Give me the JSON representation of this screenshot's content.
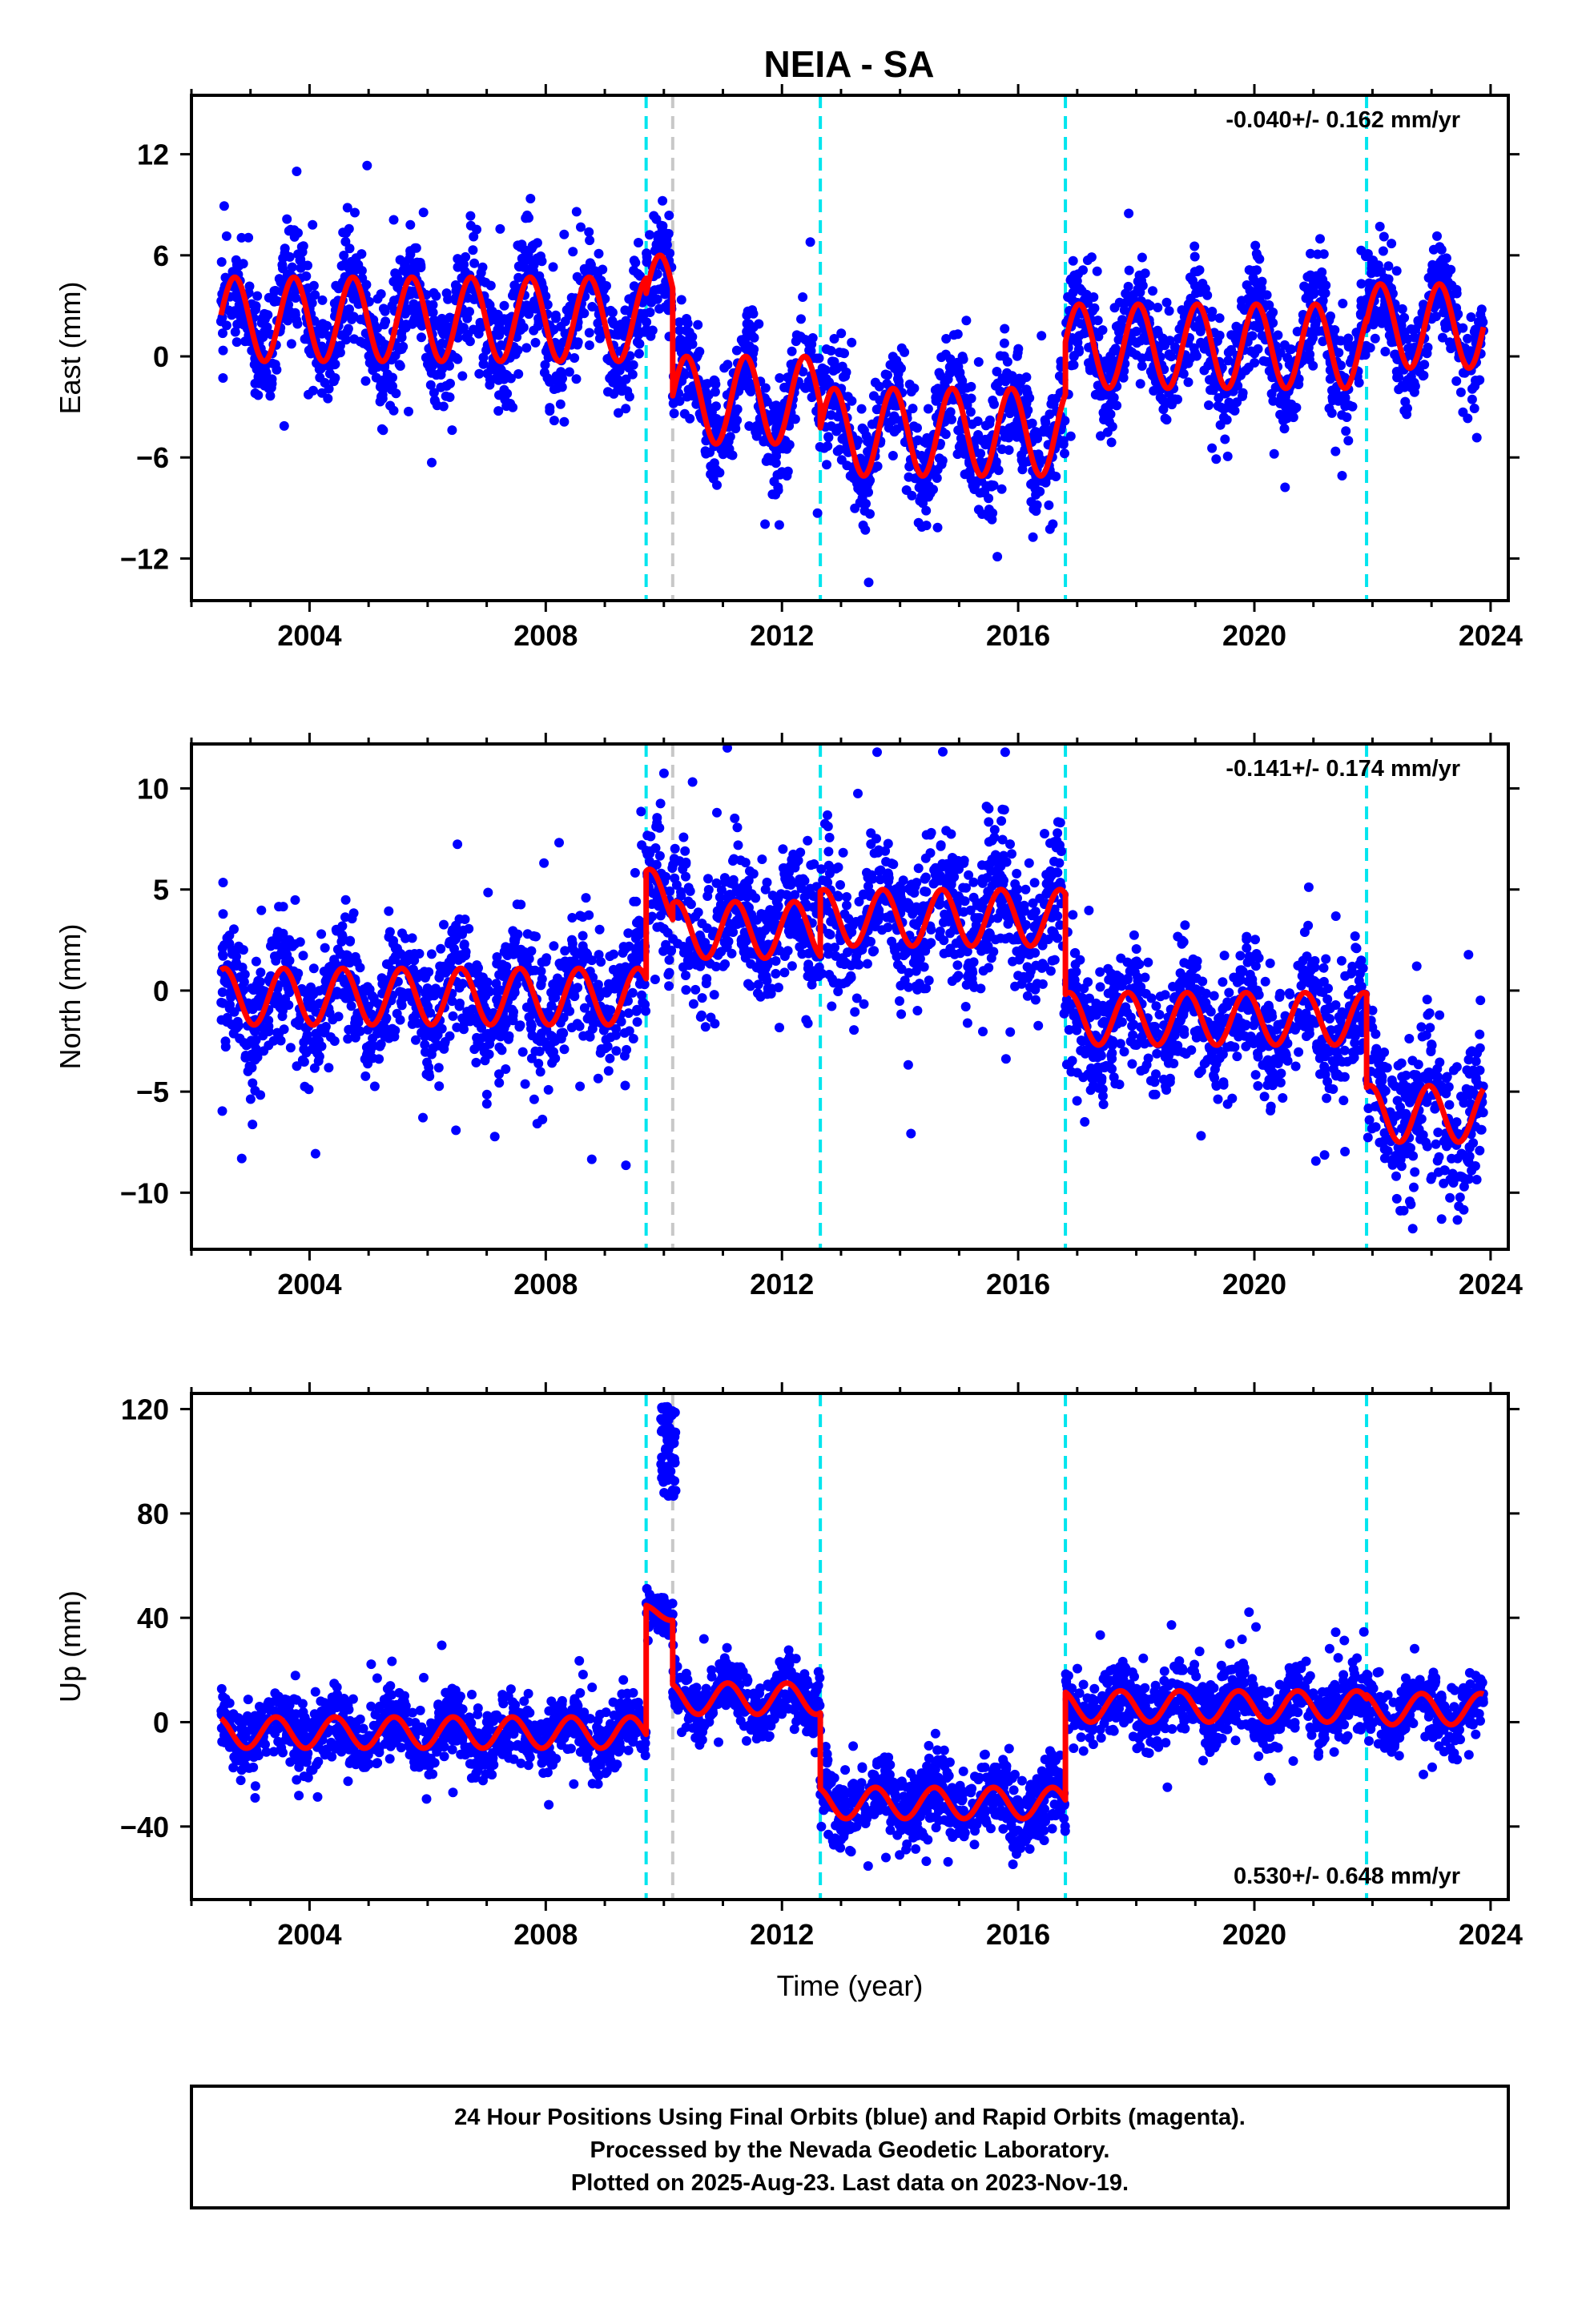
{
  "chart_data": [
    {
      "type": "scatter",
      "panel": "east",
      "title": "NEIA - SA",
      "ylabel": "East (mm)",
      "xlabel": "",
      "xlim": [
        2002.0,
        2024.3
      ],
      "ylim": [
        -14.5,
        15.5
      ],
      "xticks": [
        2004,
        2008,
        2012,
        2016,
        2020,
        2024
      ],
      "yticks": [
        12,
        6,
        0,
        -6,
        -12
      ],
      "ytick_labels": [
        "12",
        "6",
        "0",
        "−6",
        "−12"
      ],
      "rate_label": "-0.040+/- 0.162 mm/yr",
      "rate_position": "top-right",
      "grid": false,
      "data_color": "#0000ff",
      "model_color": "#ff0000",
      "breaks": [
        {
          "x": 2009.7,
          "color": "#00e5ee",
          "style": "dashed"
        },
        {
          "x": 2010.15,
          "color": "#c8c8c8",
          "style": "dashed"
        },
        {
          "x": 2012.65,
          "color": "#00e5ee",
          "style": "dashed"
        },
        {
          "x": 2016.8,
          "color": "#00e5ee",
          "style": "dashed"
        },
        {
          "x": 2021.9,
          "color": "#00e5ee",
          "style": "dashed"
        }
      ],
      "segments": [
        {
          "x0": 2002.5,
          "x1": 2009.7,
          "offset": 2.2,
          "amp": 2.5,
          "noise": 1.7,
          "phase": 0.1
        },
        {
          "x0": 2009.7,
          "x1": 2010.15,
          "offset": 3.5,
          "amp": 2.5,
          "noise": 1.7,
          "phase": 0.1
        },
        {
          "x0": 2010.15,
          "x1": 2012.65,
          "offset": -2.6,
          "amp": 2.6,
          "noise": 1.5,
          "phase": 0.1
        },
        {
          "x0": 2012.65,
          "x1": 2016.8,
          "offset": -4.5,
          "amp": 2.6,
          "noise": 1.7,
          "phase": 0.1
        },
        {
          "x0": 2016.8,
          "x1": 2021.9,
          "offset": 0.6,
          "amp": 2.5,
          "noise": 1.5,
          "phase": 0.1
        },
        {
          "x0": 2021.9,
          "x1": 2023.88,
          "offset": 1.8,
          "amp": 2.5,
          "noise": 1.5,
          "phase": 0.1
        }
      ]
    },
    {
      "type": "scatter",
      "panel": "north",
      "ylabel": "North (mm)",
      "xlabel": "",
      "xlim": [
        2002.0,
        2024.3
      ],
      "ylim": [
        -12.8,
        12.2
      ],
      "xticks": [
        2004,
        2008,
        2012,
        2016,
        2020,
        2024
      ],
      "yticks": [
        10,
        5,
        0,
        -5,
        -10
      ],
      "ytick_labels": [
        "10",
        "5",
        "0",
        "−5",
        "−10"
      ],
      "rate_label": "-0.141+/- 0.174 mm/yr",
      "rate_position": "top-right",
      "grid": false,
      "data_color": "#0000ff",
      "model_color": "#ff0000",
      "breaks": [
        {
          "x": 2009.7,
          "color": "#00e5ee",
          "style": "dashed"
        },
        {
          "x": 2010.15,
          "color": "#c8c8c8",
          "style": "dashed"
        },
        {
          "x": 2012.65,
          "color": "#00e5ee",
          "style": "dashed"
        },
        {
          "x": 2016.8,
          "color": "#00e5ee",
          "style": "dashed"
        },
        {
          "x": 2021.9,
          "color": "#00e5ee",
          "style": "dashed"
        }
      ],
      "segments": [
        {
          "x0": 2002.5,
          "x1": 2009.7,
          "offset": -0.3,
          "amp": 1.4,
          "noise": 1.6,
          "phase": 1.2
        },
        {
          "x0": 2009.7,
          "x1": 2010.15,
          "offset": 4.6,
          "amp": 1.4,
          "noise": 1.6,
          "phase": 1.2
        },
        {
          "x0": 2010.15,
          "x1": 2012.65,
          "offset": 3.0,
          "amp": 1.4,
          "noise": 1.7,
          "phase": 1.2
        },
        {
          "x0": 2012.65,
          "x1": 2016.8,
          "offset": 3.6,
          "amp": 1.4,
          "noise": 1.7,
          "phase": 1.2
        },
        {
          "x0": 2016.8,
          "x1": 2021.9,
          "offset": -1.4,
          "amp": 1.3,
          "noise": 1.5,
          "phase": 1.2
        },
        {
          "x0": 2021.9,
          "x1": 2023.88,
          "offset": -6.1,
          "amp": 1.4,
          "noise": 1.8,
          "phase": 1.2
        }
      ]
    },
    {
      "type": "scatter",
      "panel": "up",
      "ylabel": "Up (mm)",
      "xlabel": "Time (year)",
      "xlim": [
        2002.0,
        2024.3
      ],
      "ylim": [
        -68,
        126
      ],
      "xticks": [
        2004,
        2008,
        2012,
        2016,
        2020,
        2024
      ],
      "yticks": [
        120,
        80,
        40,
        0,
        -40
      ],
      "ytick_labels": [
        "120",
        "80",
        "40",
        "0",
        "−40"
      ],
      "rate_label": "0.530+/- 0.648 mm/yr",
      "rate_position": "bottom-right",
      "grid": false,
      "data_color": "#0000ff",
      "model_color": "#ff0000",
      "breaks": [
        {
          "x": 2009.7,
          "color": "#00e5ee",
          "style": "dashed"
        },
        {
          "x": 2010.15,
          "color": "#c8c8c8",
          "style": "dashed"
        },
        {
          "x": 2012.65,
          "color": "#00e5ee",
          "style": "dashed"
        },
        {
          "x": 2016.8,
          "color": "#00e5ee",
          "style": "dashed"
        },
        {
          "x": 2021.9,
          "color": "#00e5ee",
          "style": "dashed"
        }
      ],
      "segments": [
        {
          "x0": 2002.5,
          "x1": 2009.7,
          "offset": -4.0,
          "amp": 6.0,
          "noise": 6.0,
          "phase": 2.0
        },
        {
          "x0": 2009.7,
          "x1": 2010.15,
          "offset": 42.0,
          "amp": 3.0,
          "noise": 4.0,
          "phase": 2.0
        },
        {
          "x0": 2010.15,
          "x1": 2012.65,
          "offset": 9.0,
          "amp": 6.0,
          "noise": 6.0,
          "phase": 2.0
        },
        {
          "x0": 2012.65,
          "x1": 2016.8,
          "offset": -31.0,
          "amp": 6.0,
          "noise": 7.0,
          "phase": 2.0
        },
        {
          "x0": 2016.8,
          "x1": 2021.9,
          "offset": 6.0,
          "amp": 6.0,
          "noise": 6.5,
          "phase": 2.0
        },
        {
          "x0": 2021.9,
          "x1": 2023.88,
          "offset": 5.0,
          "amp": 6.0,
          "noise": 6.0,
          "phase": 2.0
        }
      ],
      "outlier_cluster": {
        "x0": 2009.95,
        "x1": 2010.2,
        "ymin": 85,
        "ymax": 122
      }
    }
  ],
  "footer": {
    "line1": "24 Hour Positions Using Final Orbits (blue) and Rapid Orbits (magenta).",
    "line2": "Processed by the Nevada Geodetic Laboratory.",
    "line3": "Plotted on 2025-Aug-23. Last data on 2023-Nov-19."
  }
}
